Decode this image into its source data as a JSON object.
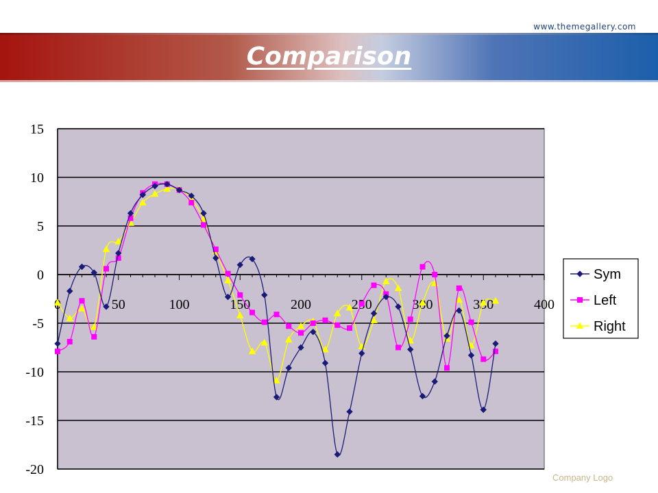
{
  "header": {
    "url": "www.themegallery.com",
    "title": "Comparison"
  },
  "footer": {
    "logo_text": "Company Logo"
  },
  "chart_data": {
    "type": "line",
    "title": "",
    "xlabel": "",
    "ylabel": "",
    "xlim": [
      0,
      400
    ],
    "ylim": [
      -20,
      15
    ],
    "x_ticks": [
      0,
      50,
      100,
      150,
      200,
      250,
      300,
      350,
      400
    ],
    "y_ticks": [
      15,
      10,
      5,
      0,
      -5,
      -10,
      -15,
      -20
    ],
    "grid": "horizontal",
    "legend_position": "right",
    "x": [
      0,
      10,
      20,
      30,
      40,
      50,
      60,
      70,
      80,
      90,
      100,
      110,
      120,
      130,
      140,
      150,
      160,
      170,
      180,
      190,
      200,
      210,
      220,
      230,
      240,
      250,
      260,
      270,
      280,
      290,
      300,
      310,
      320,
      330,
      340,
      350,
      360
    ],
    "series": [
      {
        "name": "Sym",
        "marker": "diamond",
        "color": "#1a1a78",
        "values": [
          -7.1,
          -1.7,
          0.8,
          0.2,
          -3.3,
          2.2,
          6.3,
          8.2,
          9.1,
          9.3,
          8.7,
          8.1,
          6.3,
          1.7,
          -2.3,
          1.0,
          1.6,
          -2.1,
          -12.6,
          -9.6,
          -7.5,
          -5.9,
          -9.1,
          -18.5,
          -14.1,
          -8.1,
          -4.0,
          -2.3,
          -3.3,
          -7.7,
          -12.5,
          -11.0,
          -6.3,
          -3.7,
          -8.3,
          -13.9,
          -7.1
        ]
      },
      {
        "name": "Left",
        "marker": "square",
        "color": "#ff00ff",
        "values": [
          -7.9,
          -6.9,
          -2.7,
          -6.4,
          0.6,
          1.7,
          5.8,
          8.4,
          9.3,
          9.3,
          8.7,
          7.4,
          5.1,
          2.6,
          0.1,
          -2.1,
          -3.9,
          -4.9,
          -4.1,
          -5.3,
          -6.0,
          -5.0,
          -4.7,
          -5.2,
          -5.5,
          -3.0,
          -1.1,
          -2.0,
          -7.5,
          -4.6,
          0.8,
          0.0,
          -9.6,
          -1.4,
          -4.9,
          -8.7,
          -7.9
        ]
      },
      {
        "name": "Right",
        "marker": "triangle",
        "color": "#ffff00",
        "values": [
          -2.9,
          -4.5,
          -3.5,
          -5.4,
          2.6,
          3.4,
          5.3,
          7.4,
          8.3,
          8.8,
          8.8,
          7.8,
          5.7,
          2.4,
          -0.6,
          -4.2,
          -7.9,
          -7.0,
          -10.9,
          -6.7,
          -5.3,
          -4.8,
          -7.7,
          -4.0,
          -3.4,
          -7.4,
          -4.7,
          -0.7,
          -1.4,
          -6.8,
          -2.9,
          -0.9,
          -6.6,
          -2.6,
          -7.3,
          -2.9,
          -2.7
        ]
      }
    ]
  }
}
